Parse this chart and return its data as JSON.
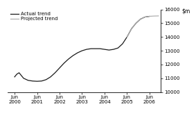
{
  "ylim": [
    10000,
    16000
  ],
  "yticks": [
    10000,
    11000,
    12000,
    13000,
    14000,
    15000,
    16000
  ],
  "ytick_labels": [
    "10000",
    "11000",
    "12000",
    "13000",
    "14000",
    "15000",
    "16000"
  ],
  "x_labels": [
    "Jun\n2000",
    "Jun\n2001",
    "Jun\n2002",
    "Jun\n2003",
    "Jun\n2004",
    "Jun\n2005",
    "Jun\n2006"
  ],
  "actual_color": "#1a1a1a",
  "projected_color": "#b0b0b0",
  "legend_actual": "Actual trend",
  "legend_projected": "Projected trend",
  "actual_data": [
    [
      0.0,
      11100
    ],
    [
      0.1,
      11300
    ],
    [
      0.2,
      11400
    ],
    [
      0.4,
      11000
    ],
    [
      0.6,
      10850
    ],
    [
      0.8,
      10800
    ],
    [
      1.0,
      10780
    ],
    [
      1.2,
      10800
    ],
    [
      1.4,
      10900
    ],
    [
      1.6,
      11100
    ],
    [
      1.8,
      11400
    ],
    [
      2.0,
      11750
    ],
    [
      2.2,
      12100
    ],
    [
      2.4,
      12400
    ],
    [
      2.6,
      12650
    ],
    [
      2.8,
      12850
    ],
    [
      3.0,
      13000
    ],
    [
      3.2,
      13100
    ],
    [
      3.4,
      13150
    ],
    [
      3.6,
      13150
    ],
    [
      3.8,
      13150
    ],
    [
      4.0,
      13100
    ],
    [
      4.2,
      13050
    ],
    [
      4.4,
      13100
    ],
    [
      4.6,
      13200
    ],
    [
      4.8,
      13500
    ],
    [
      5.0,
      14000
    ],
    [
      5.2,
      14600
    ],
    [
      5.4,
      15000
    ],
    [
      5.6,
      15300
    ],
    [
      5.8,
      15450
    ],
    [
      6.0,
      15500
    ]
  ],
  "projected_data": [
    [
      5.0,
      14000
    ],
    [
      5.2,
      14600
    ],
    [
      5.4,
      15000
    ],
    [
      5.6,
      15300
    ],
    [
      5.8,
      15450
    ],
    [
      6.0,
      15500
    ],
    [
      6.2,
      15520
    ],
    [
      6.4,
      15530
    ]
  ]
}
